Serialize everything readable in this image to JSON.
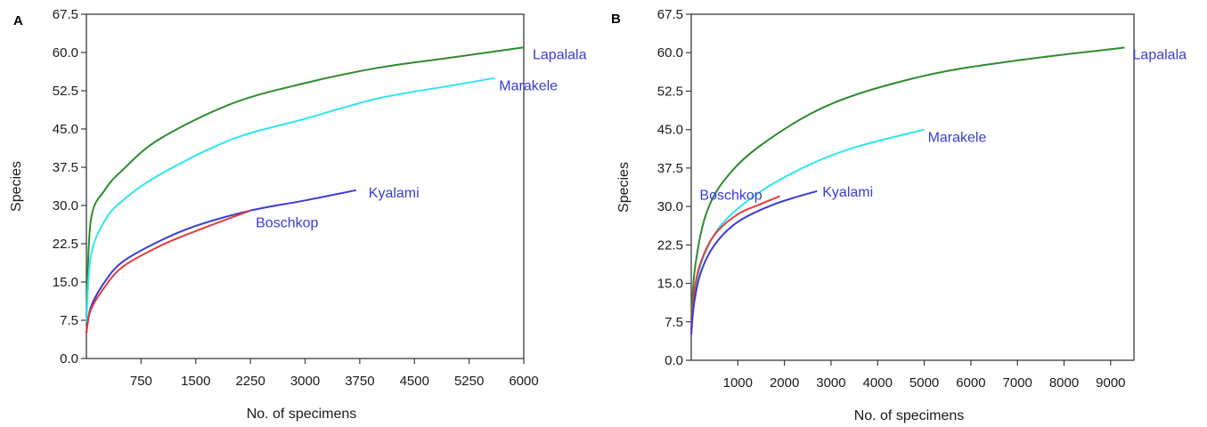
{
  "chart_data": [
    {
      "panel_label": "A",
      "type": "line",
      "xlabel": "No. of specimens",
      "ylabel": "Species",
      "xlim": [
        0,
        6000
      ],
      "ylim": [
        0,
        67.5
      ],
      "xticks": [
        "750",
        "1500",
        "2250",
        "3000",
        "3750",
        "4500",
        "5250",
        "6000"
      ],
      "yticks": [
        "0.0",
        "7.5",
        "15.0",
        "22.5",
        "30.0",
        "37.5",
        "45.0",
        "52.5",
        "60.0",
        "67.5"
      ],
      "grid": false,
      "series": [
        {
          "name": "Lapalala",
          "color": "#2e8b2e",
          "x": [
            0,
            60,
            250,
            500,
            1000,
            2000,
            3000,
            4000,
            5000,
            6000
          ],
          "y": [
            8,
            27,
            33,
            37,
            43,
            50,
            54,
            57,
            59,
            61
          ]
        },
        {
          "name": "Marakele",
          "color": "#2ee6f0",
          "x": [
            0,
            60,
            250,
            500,
            1000,
            2000,
            3000,
            4000,
            5000,
            5600
          ],
          "y": [
            7,
            20,
            27,
            31,
            36,
            43,
            47,
            51,
            53.5,
            55
          ]
        },
        {
          "name": "Kyalami",
          "color": "#3b3bd4",
          "x": [
            0,
            60,
            250,
            500,
            1000,
            1500,
            2250,
            3000,
            3700
          ],
          "y": [
            5,
            10,
            15,
            19,
            23,
            26,
            29,
            31,
            33
          ]
        },
        {
          "name": "Boschkop",
          "color": "#e23c3c",
          "x": [
            0,
            60,
            250,
            500,
            1000,
            1500,
            2250
          ],
          "y": [
            5,
            9.5,
            14,
            18,
            22,
            25,
            29
          ]
        }
      ]
    },
    {
      "panel_label": "B",
      "type": "line",
      "xlabel": "No. of specimens",
      "ylabel": "Species",
      "xlim": [
        0,
        9500
      ],
      "ylim": [
        0,
        67.5
      ],
      "xticks": [
        "1000",
        "2000",
        "3000",
        "4000",
        "5000",
        "6000",
        "7000",
        "8000",
        "9000"
      ],
      "yticks": [
        "0.0",
        "7.5",
        "15.0",
        "22.5",
        "30.0",
        "37.5",
        "45.0",
        "52.5",
        "60.0",
        "67.5"
      ],
      "grid": false,
      "series": [
        {
          "name": "Lapalala",
          "color": "#2e8b2e",
          "x": [
            0,
            80,
            300,
            700,
            1500,
            3000,
            5000,
            7000,
            9300
          ],
          "y": [
            8,
            18,
            28,
            35,
            42,
            50,
            55.5,
            58.5,
            61
          ]
        },
        {
          "name": "Marakele",
          "color": "#2ee6f0",
          "x": [
            0,
            80,
            300,
            700,
            1500,
            2500,
            3500,
            5000
          ],
          "y": [
            6,
            14,
            21,
            27,
            33,
            38,
            41.5,
            45
          ]
        },
        {
          "name": "Boschkop",
          "color": "#e23c3c",
          "x": [
            0,
            60,
            200,
            500,
            1000,
            1500,
            1900
          ],
          "y": [
            6,
            13,
            19,
            24.5,
            28.5,
            30.5,
            32
          ]
        },
        {
          "name": "Kyalami",
          "color": "#3b3bd4",
          "x": [
            0,
            60,
            200,
            500,
            1000,
            1800,
            2700
          ],
          "y": [
            5,
            11,
            17,
            22.5,
            27,
            30.5,
            33
          ]
        }
      ]
    }
  ]
}
